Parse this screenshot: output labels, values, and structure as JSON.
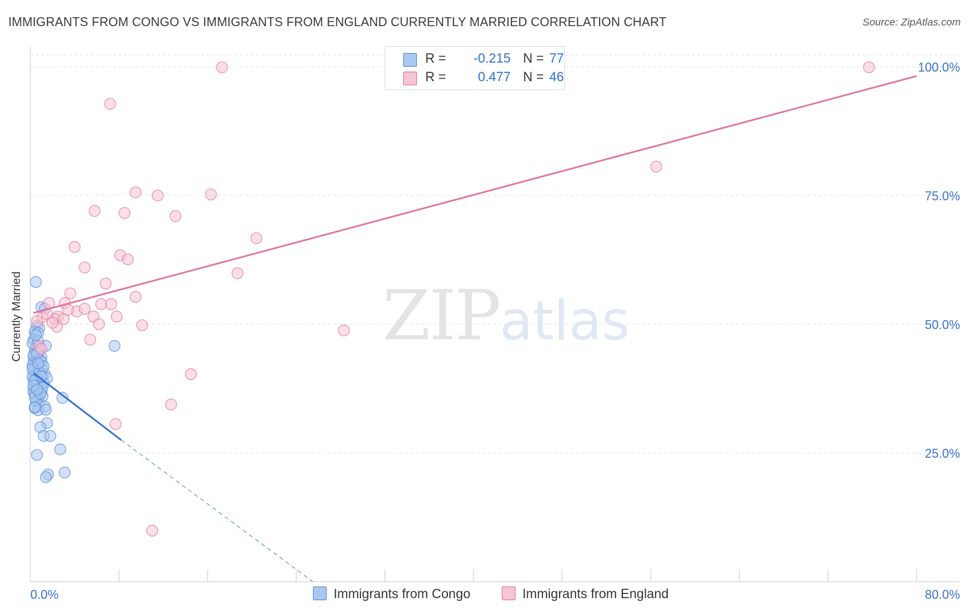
{
  "title": "IMMIGRANTS FROM CONGO VS IMMIGRANTS FROM ENGLAND CURRENTLY MARRIED CORRELATION CHART",
  "source": "Source: ZipAtlas.com",
  "watermark": {
    "zip": "ZIP",
    "atlas": "atlas"
  },
  "legend": {
    "r_label": "R =",
    "n_label": "N =",
    "rows": [
      {
        "r": "-0.215",
        "n": "77",
        "color": "#a9c8f0",
        "border": "#5b8fd9"
      },
      {
        "r": "0.477",
        "n": "46",
        "color": "#f7c4d3",
        "border": "#e07a9c"
      }
    ]
  },
  "chart_data": {
    "type": "scatter",
    "title": "IMMIGRANTS FROM CONGO VS IMMIGRANTS FROM ENGLAND CURRENTLY MARRIED CORRELATION CHART",
    "xlabel": "",
    "ylabel": "Currently Married",
    "xlim": [
      0,
      80
    ],
    "ylim": [
      0,
      100
    ],
    "x_tick_labels": [
      "0.0%",
      "80.0%"
    ],
    "y_tick_labels": [
      "25.0%",
      "50.0%",
      "75.0%",
      "100.0%"
    ],
    "y_ticks": [
      25,
      50,
      75,
      100
    ],
    "grid": true,
    "legend_position": "top-center",
    "series": [
      {
        "name": "Immigrants from Congo",
        "color": "#5b8fd9",
        "fill": "#a9c8f0",
        "trend": {
          "x0": 0.3,
          "y0": 40.5,
          "x1": 8.2,
          "y1": 27.5,
          "dash_to_x": 25.5,
          "dash_to_y": 0
        },
        "points": [
          [
            0.5,
            58.2
          ],
          [
            1.0,
            53.3
          ],
          [
            1.3,
            53.0
          ],
          [
            0.6,
            49.7
          ],
          [
            0.8,
            49.3
          ],
          [
            0.4,
            48.5
          ],
          [
            0.7,
            48.3
          ],
          [
            0.3,
            47.0
          ],
          [
            0.5,
            45.8
          ],
          [
            1.4,
            45.8
          ],
          [
            0.8,
            45.0
          ],
          [
            0.4,
            44.8
          ],
          [
            0.3,
            43.7
          ],
          [
            1.0,
            43.6
          ],
          [
            0.6,
            43.0
          ],
          [
            0.3,
            42.7
          ],
          [
            0.5,
            42.3
          ],
          [
            0.8,
            42.0
          ],
          [
            0.4,
            41.5
          ],
          [
            1.1,
            41.3
          ],
          [
            0.6,
            41.0
          ],
          [
            0.3,
            40.8
          ],
          [
            0.9,
            40.5
          ],
          [
            1.3,
            40.3
          ],
          [
            0.5,
            40.0
          ],
          [
            0.2,
            39.8
          ],
          [
            1.5,
            39.5
          ],
          [
            0.7,
            39.3
          ],
          [
            0.4,
            38.8
          ],
          [
            1.2,
            38.5
          ],
          [
            0.9,
            38.0
          ],
          [
            0.3,
            37.5
          ],
          [
            0.6,
            37.0
          ],
          [
            1.0,
            36.8
          ],
          [
            0.4,
            36.3
          ],
          [
            1.1,
            36.0
          ],
          [
            0.7,
            35.5
          ],
          [
            2.9,
            35.7
          ],
          [
            0.5,
            35.0
          ],
          [
            0.8,
            34.3
          ],
          [
            1.3,
            34.0
          ],
          [
            0.4,
            33.7
          ],
          [
            0.7,
            33.3
          ],
          [
            1.4,
            33.4
          ],
          [
            1.5,
            30.8
          ],
          [
            0.9,
            30.0
          ],
          [
            1.2,
            28.3
          ],
          [
            1.8,
            28.3
          ],
          [
            2.7,
            25.7
          ],
          [
            0.6,
            24.6
          ],
          [
            1.6,
            20.8
          ],
          [
            3.1,
            21.2
          ],
          [
            1.4,
            20.3
          ],
          [
            7.6,
            45.8
          ],
          [
            0.2,
            46.3
          ],
          [
            0.3,
            44.0
          ],
          [
            0.2,
            42.0
          ],
          [
            0.6,
            38.3
          ],
          [
            0.3,
            36.8
          ],
          [
            0.9,
            43.0
          ],
          [
            0.5,
            39.3
          ],
          [
            1.0,
            42.7
          ],
          [
            0.2,
            41.3
          ],
          [
            0.7,
            46.7
          ],
          [
            0.4,
            35.8
          ],
          [
            1.1,
            37.7
          ],
          [
            0.8,
            40.7
          ],
          [
            0.3,
            39.0
          ],
          [
            0.6,
            44.3
          ],
          [
            1.2,
            41.8
          ],
          [
            0.4,
            33.9
          ],
          [
            0.9,
            36.5
          ],
          [
            0.5,
            47.9
          ],
          [
            0.7,
            42.4
          ],
          [
            0.3,
            38.1
          ],
          [
            1.0,
            39.9
          ],
          [
            0.6,
            37.3
          ]
        ]
      },
      {
        "name": "Immigrants from England",
        "color": "#e07a9c",
        "fill": "#f7c4d3",
        "trend": {
          "x0": 0.3,
          "y0": 52.2,
          "x1": 80,
          "y1": 98.2
        },
        "points": [
          [
            17.3,
            99.9
          ],
          [
            75.7,
            99.9
          ],
          [
            7.2,
            92.8
          ],
          [
            56.5,
            80.6
          ],
          [
            9.5,
            75.6
          ],
          [
            11.5,
            75.0
          ],
          [
            16.3,
            75.2
          ],
          [
            5.8,
            72.0
          ],
          [
            8.5,
            71.6
          ],
          [
            13.1,
            71.0
          ],
          [
            20.4,
            66.7
          ],
          [
            4.0,
            65.0
          ],
          [
            8.1,
            63.4
          ],
          [
            8.8,
            62.6
          ],
          [
            4.9,
            61.0
          ],
          [
            18.7,
            59.9
          ],
          [
            6.8,
            57.9
          ],
          [
            3.6,
            56.0
          ],
          [
            9.5,
            55.3
          ],
          [
            1.7,
            54.1
          ],
          [
            3.1,
            54.1
          ],
          [
            6.4,
            53.9
          ],
          [
            7.3,
            53.9
          ],
          [
            4.2,
            52.5
          ],
          [
            4.9,
            53.0
          ],
          [
            5.7,
            51.5
          ],
          [
            2.5,
            51.5
          ],
          [
            7.8,
            51.5
          ],
          [
            1.1,
            51.4
          ],
          [
            2.2,
            51.0
          ],
          [
            3.0,
            51.0
          ],
          [
            6.2,
            50.0
          ],
          [
            2.4,
            49.5
          ],
          [
            10.1,
            49.8
          ],
          [
            28.3,
            48.8
          ],
          [
            5.4,
            47.0
          ],
          [
            0.8,
            45.7
          ],
          [
            14.5,
            40.3
          ],
          [
            12.7,
            34.4
          ],
          [
            7.7,
            30.6
          ],
          [
            11.0,
            9.9
          ],
          [
            1.5,
            52.0
          ],
          [
            0.6,
            50.6
          ],
          [
            3.4,
            52.8
          ],
          [
            2.0,
            50.3
          ],
          [
            1.0,
            45.2
          ]
        ]
      }
    ]
  }
}
